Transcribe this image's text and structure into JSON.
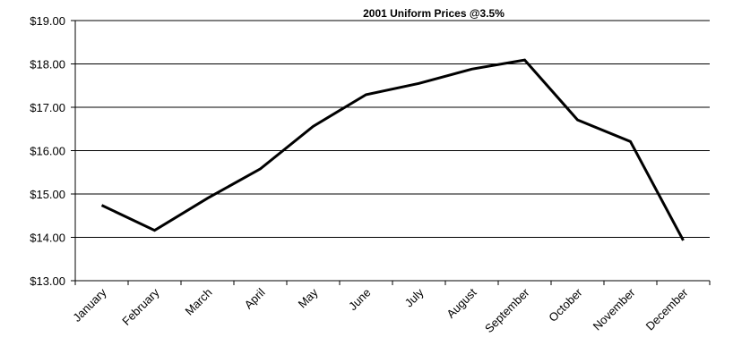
{
  "chart_data": {
    "type": "line",
    "title": "2001 Uniform Prices @3.5%",
    "xlabel": "",
    "ylabel": "",
    "categories": [
      "January",
      "February",
      "March",
      "April",
      "May",
      "June",
      "July",
      "August",
      "September",
      "October",
      "November",
      "December"
    ],
    "series": [
      {
        "values": [
          14.74,
          14.16,
          14.9,
          15.58,
          16.56,
          17.29,
          17.55,
          17.88,
          18.09,
          16.71,
          16.21,
          13.93
        ],
        "color": "#000000"
      }
    ],
    "ylim": [
      13,
      19
    ],
    "yticks": [
      "$13.00",
      "$14.00",
      "$15.00",
      "$16.00",
      "$17.00",
      "$18.00",
      "$19.00"
    ],
    "grid": "horizontal",
    "legend": "none"
  }
}
